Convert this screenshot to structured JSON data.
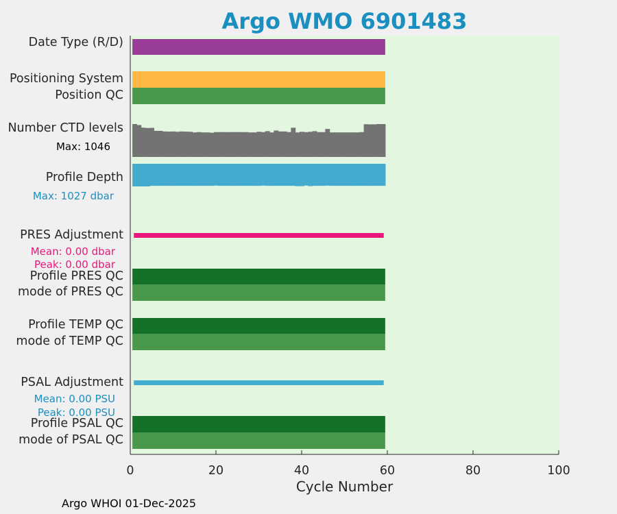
{
  "title": "Argo WMO 6901483",
  "footer": "Argo WHOI 01-Dec-2025",
  "colors": {
    "panel_bg": "#e3f7e0",
    "date_type": "#9a3d98",
    "positioning": "#fdb743",
    "qc_good_dark": "#137228",
    "qc_good_light": "#48994a",
    "ctd": "#737373",
    "depth": "#43aad0",
    "pres_adj": "#e9167d",
    "psal_adj": "#43aad0",
    "title": "#1a8fc0"
  },
  "rows": {
    "date_type": "Date Type (R/D)",
    "positioning_system": "Positioning System",
    "position_qc": "Position QC",
    "ctd_levels": "Number CTD levels",
    "profile_depth": "Profile Depth",
    "pres_adjustment": "PRES Adjustment",
    "profile_pres_qc": "Profile PRES QC",
    "mode_pres_qc": "mode of PRES QC",
    "profile_temp_qc": "Profile TEMP QC",
    "mode_temp_qc": "mode of TEMP QC",
    "psal_adjustment": "PSAL Adjustment",
    "profile_psal_qc": "Profile PSAL QC",
    "mode_psal_qc": "mode of PSAL QC"
  },
  "notes": {
    "ctd_max": "Max: 1046",
    "depth_max": "Max: 1027 dbar",
    "pres_mean": "Mean: 0.00 dbar",
    "pres_peak": "Peak: 0.00 dbar",
    "psal_mean": "Mean: 0.00 PSU",
    "psal_peak": "Peak: 0.00 PSU"
  },
  "chart_data": {
    "type": "bar",
    "xlabel": "Cycle Number",
    "xlim": [
      0,
      100
    ],
    "xticks": [
      0,
      20,
      40,
      60,
      80,
      100
    ],
    "cycles_range": [
      1,
      59
    ],
    "ctd_levels": [
      1046,
      1015,
      930,
      920,
      925,
      830,
      830,
      810,
      805,
      810,
      800,
      810,
      805,
      800,
      780,
      790,
      780,
      780,
      770,
      790,
      790,
      790,
      790,
      790,
      790,
      790,
      790,
      780,
      780,
      800,
      790,
      820,
      780,
      840,
      810,
      810,
      790,
      930,
      780,
      800,
      790,
      800,
      820,
      790,
      790,
      890,
      780,
      780,
      780,
      780,
      780,
      780,
      780,
      790,
      1040,
      1036,
      1036,
      1046,
      1046
    ],
    "profile_depth": [
      1027,
      1027,
      1027,
      1027,
      1000,
      1000,
      1000,
      1000,
      1000,
      1000,
      1000,
      1000,
      1000,
      1000,
      1000,
      1000,
      1000,
      1000,
      1000,
      990,
      1000,
      1000,
      1000,
      1000,
      1000,
      1000,
      1000,
      1000,
      1000,
      1000,
      990,
      1000,
      1000,
      1000,
      1000,
      1000,
      1000,
      1000,
      1015,
      1015,
      990,
      1015,
      1000,
      1000,
      1000,
      990,
      1000,
      1000,
      1000,
      1000,
      1000,
      1000,
      1000,
      1000,
      1000,
      1000,
      1000,
      1000,
      1000
    ],
    "ctd_max": 1046,
    "depth_max": 1027
  }
}
